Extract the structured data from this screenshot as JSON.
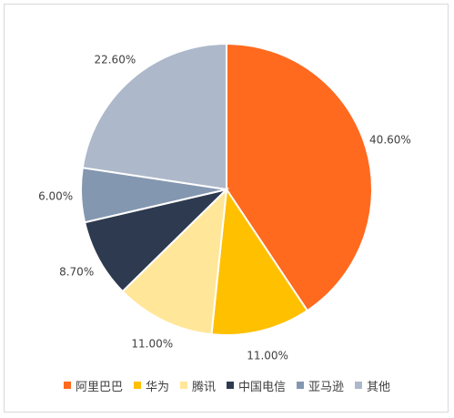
{
  "chart_data": {
    "type": "pie",
    "categories": [
      "阿里巴巴",
      "华为",
      "腾讯",
      "中国电信",
      "亚马逊",
      "其他"
    ],
    "values": [
      40.6,
      11.0,
      11.0,
      8.7,
      6.0,
      22.6
    ],
    "labels": [
      "40.60%",
      "11.00%",
      "11.00%",
      "8.70%",
      "6.00%",
      "22.60%"
    ],
    "colors": [
      "#ff6a1f",
      "#ffc000",
      "#ffe699",
      "#2e3a4f",
      "#8497b0",
      "#adb9ca"
    ],
    "start": "12 o'clock",
    "direction": "clockwise",
    "legend_position": "bottom"
  }
}
